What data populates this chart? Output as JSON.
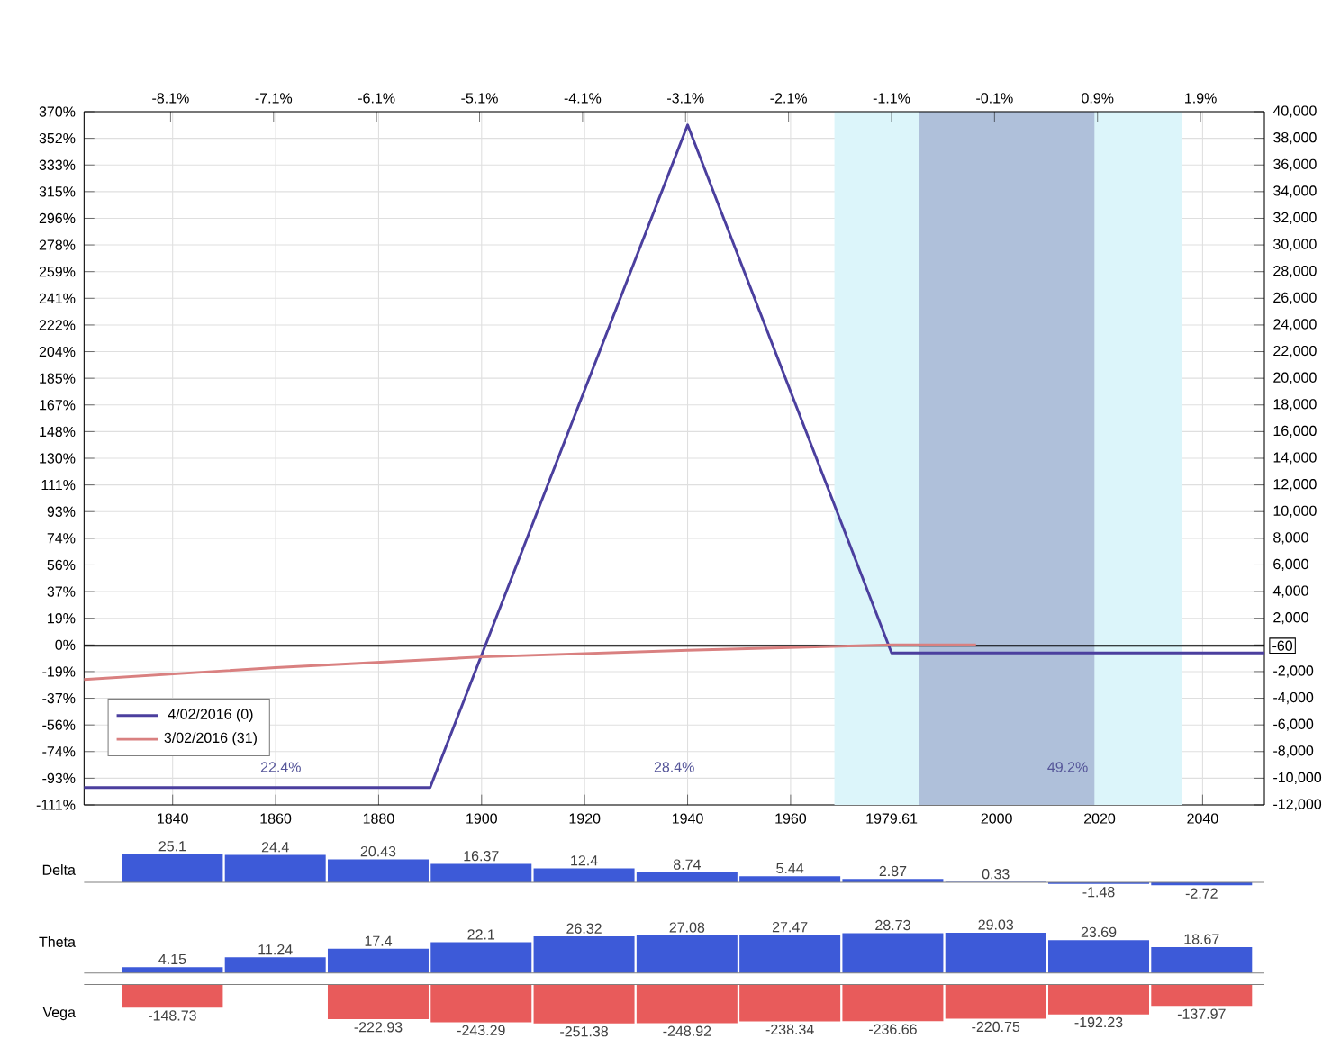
{
  "chart_data": [
    {
      "type": "line",
      "xlim": [
        1822.8,
        2052
      ],
      "xticks": [
        1840,
        1860,
        1880,
        1900,
        1920,
        1940,
        1960,
        1979.61,
        2000,
        2020,
        2040
      ],
      "x2lim": [
        -8.94,
        2.52
      ],
      "x2ticks": [
        {
          "value": -8.1,
          "label": "-8.1%"
        },
        {
          "value": -7.1,
          "label": "-7.1%"
        },
        {
          "value": -6.1,
          "label": "-6.1%"
        },
        {
          "value": -5.1,
          "label": "-5.1%"
        },
        {
          "value": -4.1,
          "label": "-4.1%"
        },
        {
          "value": -3.1,
          "label": "-3.1%"
        },
        {
          "value": -2.1,
          "label": "-2.1%"
        },
        {
          "value": -1.1,
          "label": "-1.1%"
        },
        {
          "value": -0.1,
          "label": "-0.1%"
        },
        {
          "value": 0.9,
          "label": "0.9%"
        },
        {
          "value": 1.9,
          "label": "1.9%"
        }
      ],
      "ylim": [
        -111.11,
        370.37
      ],
      "yticks": [
        {
          "value": 370.37,
          "label": "370%"
        },
        {
          "value": 351.85,
          "label": "352%"
        },
        {
          "value": 333.33,
          "label": "333%"
        },
        {
          "value": 314.81,
          "label": "315%"
        },
        {
          "value": 296.3,
          "label": "296%"
        },
        {
          "value": 277.78,
          "label": "278%"
        },
        {
          "value": 259.26,
          "label": "259%"
        },
        {
          "value": 240.74,
          "label": "241%"
        },
        {
          "value": 222.22,
          "label": "222%"
        },
        {
          "value": 203.7,
          "label": "204%"
        },
        {
          "value": 185.19,
          "label": "185%"
        },
        {
          "value": 166.67,
          "label": "167%"
        },
        {
          "value": 148.15,
          "label": "148%"
        },
        {
          "value": 129.63,
          "label": "130%"
        },
        {
          "value": 111.11,
          "label": "111%"
        },
        {
          "value": 92.59,
          "label": "93%"
        },
        {
          "value": 74.07,
          "label": "74%"
        },
        {
          "value": 55.56,
          "label": "56%"
        },
        {
          "value": 37.04,
          "label": "37%"
        },
        {
          "value": 18.52,
          "label": "19%"
        },
        {
          "value": 0,
          "label": "0%"
        },
        {
          "value": -18.52,
          "label": "-19%"
        },
        {
          "value": -37.04,
          "label": "-37%"
        },
        {
          "value": -55.56,
          "label": "-56%"
        },
        {
          "value": -74.07,
          "label": "-74%"
        },
        {
          "value": -92.59,
          "label": "-93%"
        },
        {
          "value": -111.11,
          "label": "-111%"
        }
      ],
      "y2lim": [
        -12000,
        40000
      ],
      "y2ticks": [
        {
          "value": 40000,
          "label": "40,000"
        },
        {
          "value": 38000,
          "label": "38,000"
        },
        {
          "value": 36000,
          "label": "36,000"
        },
        {
          "value": 34000,
          "label": "34,000"
        },
        {
          "value": 32000,
          "label": "32,000"
        },
        {
          "value": 30000,
          "label": "30,000"
        },
        {
          "value": 28000,
          "label": "28,000"
        },
        {
          "value": 26000,
          "label": "26,000"
        },
        {
          "value": 24000,
          "label": "24,000"
        },
        {
          "value": 22000,
          "label": "22,000"
        },
        {
          "value": 20000,
          "label": "20,000"
        },
        {
          "value": 18000,
          "label": "18,000"
        },
        {
          "value": 16000,
          "label": "16,000"
        },
        {
          "value": 14000,
          "label": "14,000"
        },
        {
          "value": 12000,
          "label": "12,000"
        },
        {
          "value": 10000,
          "label": "10,000"
        },
        {
          "value": 8000,
          "label": "8,000"
        },
        {
          "value": 6000,
          "label": "6,000"
        },
        {
          "value": 4000,
          "label": "4,000"
        },
        {
          "value": 2000,
          "label": "2,000"
        },
        {
          "value": 0,
          "label": null
        },
        {
          "value": -2000,
          "label": "-2,000"
        },
        {
          "value": -4000,
          "label": "-4,000"
        },
        {
          "value": -6000,
          "label": "-6,000"
        },
        {
          "value": -8000,
          "label": "-8,000"
        },
        {
          "value": -10000,
          "label": "-10,000"
        },
        {
          "value": -12000,
          "label": "-12,000"
        }
      ],
      "series": [
        {
          "name": "4/02/2016 (0)",
          "color": "#4b3f9e",
          "axis": "y2",
          "x": [
            1822.8,
            1890,
            1940,
            1979.61,
            2052
          ],
          "values": [
            -10700,
            -10700,
            39000,
            -600,
            -600
          ]
        },
        {
          "name": "3/02/2016 (31)",
          "color": "#d98080",
          "axis": "y2",
          "x": [
            1822.8,
            1860,
            1900,
            1940,
            1979.61,
            1996
          ],
          "values": [
            -2600,
            -1700,
            -900,
            -400,
            0,
            0
          ]
        }
      ],
      "bands": [
        {
          "axis": "x",
          "from": 1968.5,
          "to": 2036,
          "color": "#dcf5fa"
        },
        {
          "axis": "x",
          "from": 1985,
          "to": 2019,
          "color": "#afc0da"
        }
      ],
      "ref_lines": [
        {
          "axis": "y2",
          "value": -60,
          "label": "-60",
          "color": "#000000"
        }
      ],
      "annotations": [
        "22.4%",
        "28.4%",
        "49.2%"
      ],
      "grid": true,
      "legend": "bottom left",
      "marker": "none",
      "line_style": "solid"
    },
    {
      "type": "bar",
      "ylabel": "Delta",
      "color": "#3d5ad8",
      "data_labels": true,
      "tick_labels": false,
      "categories": [
        "1840",
        "1860",
        "1880",
        "1900",
        "1920",
        "1940",
        "1960",
        "1979.61",
        "2000",
        "2020",
        "2040"
      ],
      "values": [
        25.1,
        24.4,
        20.43,
        16.37,
        12.4,
        8.74,
        5.44,
        2.87,
        0.33,
        -1.48,
        -2.72
      ]
    },
    {
      "type": "bar",
      "ylabel": "Theta",
      "color": "#3d5ad8",
      "data_labels": true,
      "tick_labels": false,
      "categories": [
        "1840",
        "1860",
        "1880",
        "1900",
        "1920",
        "1940",
        "1960",
        "1979.61",
        "2000",
        "2020",
        "2040"
      ],
      "values": [
        4.15,
        11.24,
        17.4,
        22.1,
        26.32,
        27.08,
        27.47,
        28.73,
        29.03,
        23.69,
        18.67
      ]
    },
    {
      "type": "bar",
      "ylabel": "Vega",
      "color": "#e85b5b",
      "data_labels": true,
      "tick_labels": false,
      "categories": [
        "1840",
        "1860",
        "1880",
        "1900",
        "1920",
        "1940",
        "1960",
        "1979.61",
        "2000",
        "2020",
        "2040"
      ],
      "values": [
        -148.73,
        null,
        -222.93,
        -243.29,
        -251.38,
        -248.92,
        -238.34,
        -236.66,
        -220.75,
        -192.23,
        -137.97
      ]
    }
  ]
}
